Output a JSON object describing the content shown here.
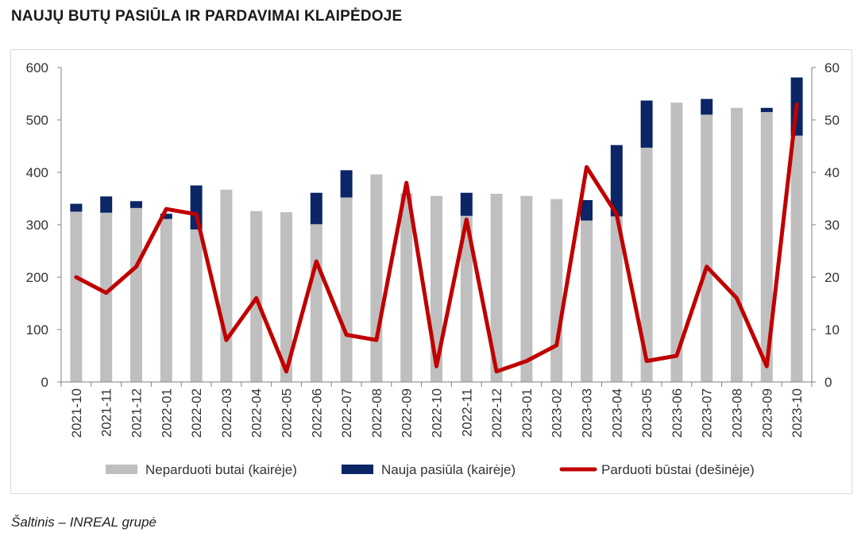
{
  "header": {
    "title": "NAUJŲ BUTŲ PASIŪLA IR PARDAVIMAI KLAIPĖDOJE"
  },
  "footer": {
    "source": "Šaltinis – INREAL grupė"
  },
  "chart_data": {
    "type": "bar",
    "title": "NAUJŲ BUTŲ PASIŪLA IR PARDAVIMAI KLAIPĖDOJE",
    "categories": [
      "2021-10",
      "2021-11",
      "2021-12",
      "2022-01",
      "2022-02",
      "2022-03",
      "2022-04",
      "2022-05",
      "2022-06",
      "2022-07",
      "2022-08",
      "2022-09",
      "2022-10",
      "2022-11",
      "2022-12",
      "2023-01",
      "2023-02",
      "2023-03",
      "2023-04",
      "2023-05",
      "2023-06",
      "2023-07",
      "2023-08",
      "2023-09",
      "2023-10"
    ],
    "series": [
      {
        "name": "Neparduoti butai (kairėje)",
        "kind": "bar-stack",
        "axis": "left",
        "color": "#bfbfbf",
        "values": [
          325,
          323,
          332,
          311,
          291,
          367,
          326,
          324,
          301,
          352,
          396,
          360,
          355,
          317,
          359,
          355,
          349,
          308,
          316,
          447,
          533,
          510,
          523,
          515,
          470
        ]
      },
      {
        "name": "Nauja pasiūla (kairėje)",
        "kind": "bar-stack",
        "axis": "left",
        "color": "#0b2566",
        "values": [
          15,
          31,
          13,
          10,
          84,
          0,
          0,
          0,
          60,
          52,
          0,
          0,
          0,
          44,
          0,
          0,
          0,
          39,
          136,
          90,
          0,
          30,
          0,
          8,
          111
        ]
      },
      {
        "name": "Parduoti būstai (dešinėje)",
        "kind": "line",
        "axis": "right",
        "color": "#c00000",
        "values": [
          20,
          17,
          22,
          33,
          32,
          8,
          16,
          2,
          23,
          9,
          8,
          38,
          3,
          31,
          2,
          4,
          7,
          41,
          32,
          4,
          5,
          22,
          16,
          3,
          53
        ]
      }
    ],
    "ylim_left": [
      0,
      600
    ],
    "yticks_left": [
      "0",
      "100",
      "200",
      "300",
      "400",
      "500",
      "600"
    ],
    "ylim_right": [
      0,
      60
    ],
    "yticks_right": [
      "0",
      "10",
      "20",
      "30",
      "40",
      "50",
      "60"
    ],
    "grid": false,
    "legend": "bottom"
  }
}
